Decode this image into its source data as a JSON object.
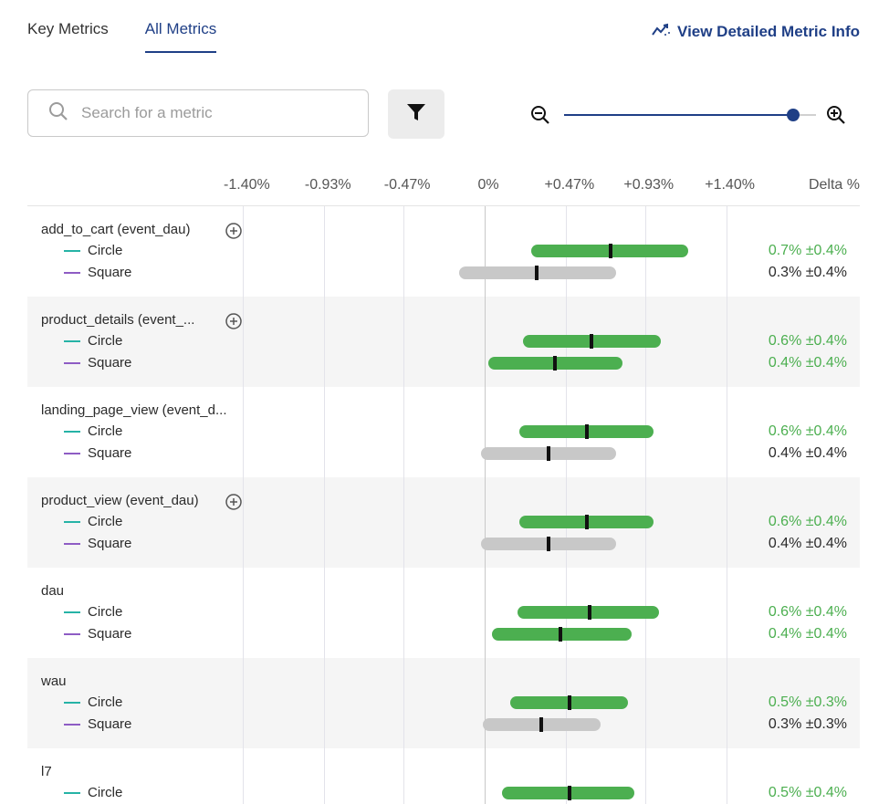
{
  "tabs": {
    "key_metrics": "Key Metrics",
    "all_metrics": "All Metrics"
  },
  "detail_link": "View Detailed Metric Info",
  "search": {
    "placeholder": "Search for a metric",
    "value": ""
  },
  "zoom": {
    "level": 0.91
  },
  "axis": {
    "ticks": [
      {
        "value": -1.4,
        "label": "-1.40%"
      },
      {
        "value": -0.93,
        "label": "-0.93%"
      },
      {
        "value": -0.47,
        "label": "-0.47%"
      },
      {
        "value": 0,
        "label": "0%"
      },
      {
        "value": 0.47,
        "label": "+0.47%"
      },
      {
        "value": 0.93,
        "label": "+0.93%"
      },
      {
        "value": 1.4,
        "label": "+1.40%"
      }
    ],
    "delta_header": "Delta %"
  },
  "colors": {
    "circle": "#26b3a6",
    "square": "#8e5cc4",
    "significant": "#4caf50",
    "neutral": "#c8c8c8",
    "accent": "#1f3f86"
  },
  "metrics": [
    {
      "name": "add_to_cart (event_dau)",
      "addable": true,
      "series": [
        {
          "label": "Circle",
          "low": 0.27,
          "point": 0.73,
          "high": 1.18,
          "significant": true,
          "delta": "0.7% ±0.4%"
        },
        {
          "label": "Square",
          "low": -0.15,
          "point": 0.3,
          "high": 0.76,
          "significant": false,
          "delta": "0.3% ±0.4%"
        }
      ]
    },
    {
      "name": "product_details (event_...",
      "addable": true,
      "series": [
        {
          "label": "Circle",
          "low": 0.22,
          "point": 0.62,
          "high": 1.02,
          "significant": true,
          "delta": "0.6% ±0.4%"
        },
        {
          "label": "Square",
          "low": 0.02,
          "point": 0.41,
          "high": 0.8,
          "significant": true,
          "delta": "0.4% ±0.4%"
        }
      ]
    },
    {
      "name": "landing_page_view (event_d...",
      "addable": false,
      "series": [
        {
          "label": "Circle",
          "low": 0.2,
          "point": 0.59,
          "high": 0.98,
          "significant": true,
          "delta": "0.6% ±0.4%"
        },
        {
          "label": "Square",
          "low": -0.02,
          "point": 0.37,
          "high": 0.76,
          "significant": false,
          "delta": "0.4% ±0.4%"
        }
      ]
    },
    {
      "name": "product_view (event_dau)",
      "addable": true,
      "series": [
        {
          "label": "Circle",
          "low": 0.2,
          "point": 0.59,
          "high": 0.98,
          "significant": true,
          "delta": "0.6% ±0.4%"
        },
        {
          "label": "Square",
          "low": -0.02,
          "point": 0.37,
          "high": 0.76,
          "significant": false,
          "delta": "0.4% ±0.4%"
        }
      ]
    },
    {
      "name": "dau",
      "addable": false,
      "series": [
        {
          "label": "Circle",
          "low": 0.19,
          "point": 0.61,
          "high": 1.01,
          "significant": true,
          "delta": "0.6% ±0.4%"
        },
        {
          "label": "Square",
          "low": 0.04,
          "point": 0.44,
          "high": 0.85,
          "significant": true,
          "delta": "0.4% ±0.4%"
        }
      ]
    },
    {
      "name": "wau",
      "addable": false,
      "series": [
        {
          "label": "Circle",
          "low": 0.15,
          "point": 0.49,
          "high": 0.83,
          "significant": true,
          "delta": "0.5% ±0.3%"
        },
        {
          "label": "Square",
          "low": -0.01,
          "point": 0.33,
          "high": 0.67,
          "significant": false,
          "delta": "0.3% ±0.3%"
        }
      ]
    },
    {
      "name": "l7",
      "addable": false,
      "series": [
        {
          "label": "Circle",
          "low": 0.1,
          "point": 0.49,
          "high": 0.87,
          "significant": true,
          "delta": "0.5% ±0.4%"
        }
      ]
    }
  ]
}
